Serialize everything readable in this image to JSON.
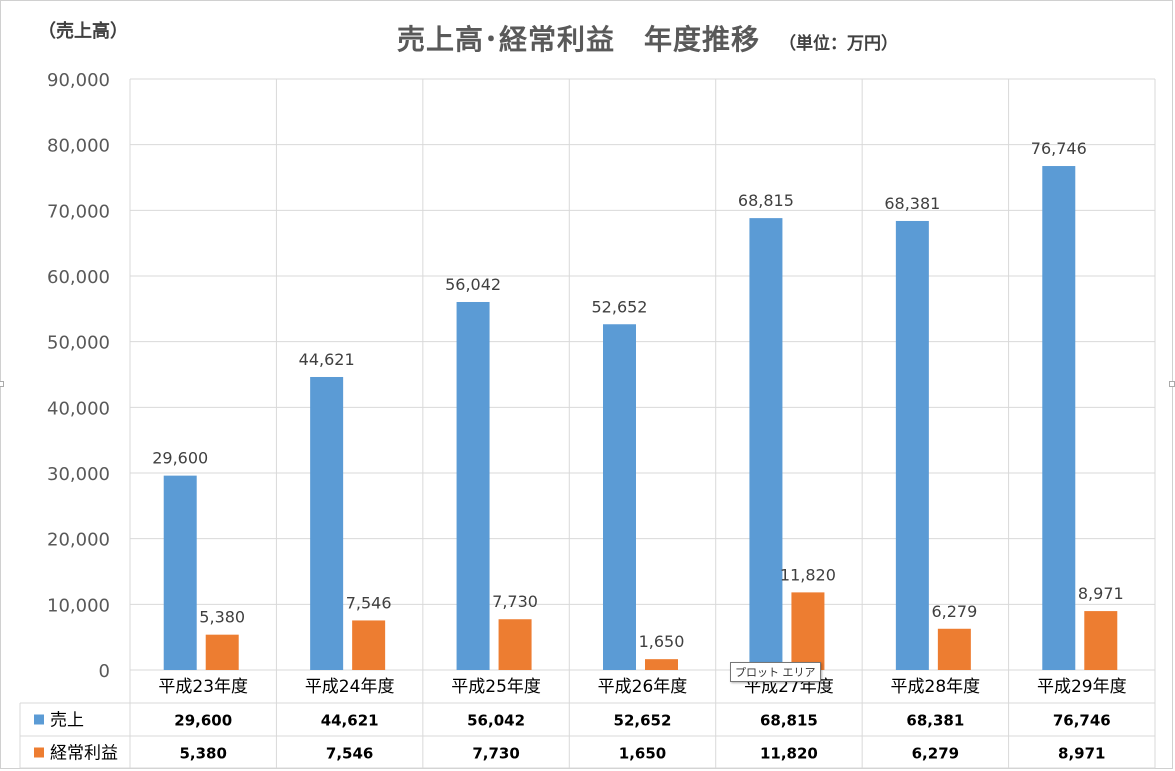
{
  "chart_data": {
    "type": "bar",
    "title": "売上高･経常利益　年度推移",
    "unit_note": "（単位：万円）",
    "ylabel": "（売上高）",
    "ylim": [
      0,
      90000
    ],
    "yticks": [
      "0",
      "10,000",
      "20,000",
      "30,000",
      "40,000",
      "50,000",
      "60,000",
      "70,000",
      "80,000",
      "90,000"
    ],
    "grid": true,
    "legend": "data-table",
    "categories": [
      "平成23年度",
      "平成24年度",
      "平成25年度",
      "平成26年度",
      "平成27年度",
      "平成28年度",
      "平成29年度"
    ],
    "series": [
      {
        "name": "売上",
        "color": "#5B9BD5",
        "values": [
          29600,
          44621,
          56042,
          52652,
          68815,
          68381,
          76746
        ],
        "labels": [
          "29,600",
          "44,621",
          "56,042",
          "52,652",
          "68,815",
          "68,381",
          "76,746"
        ]
      },
      {
        "name": "経常利益",
        "color": "#ED7D31",
        "values": [
          5380,
          7546,
          7730,
          1650,
          11820,
          6279,
          8971
        ],
        "labels": [
          "5,380",
          "7,546",
          "7,730",
          "1,650",
          "11,820",
          "6,279",
          "8,971"
        ]
      }
    ]
  },
  "tooltip": "プロット エリア"
}
